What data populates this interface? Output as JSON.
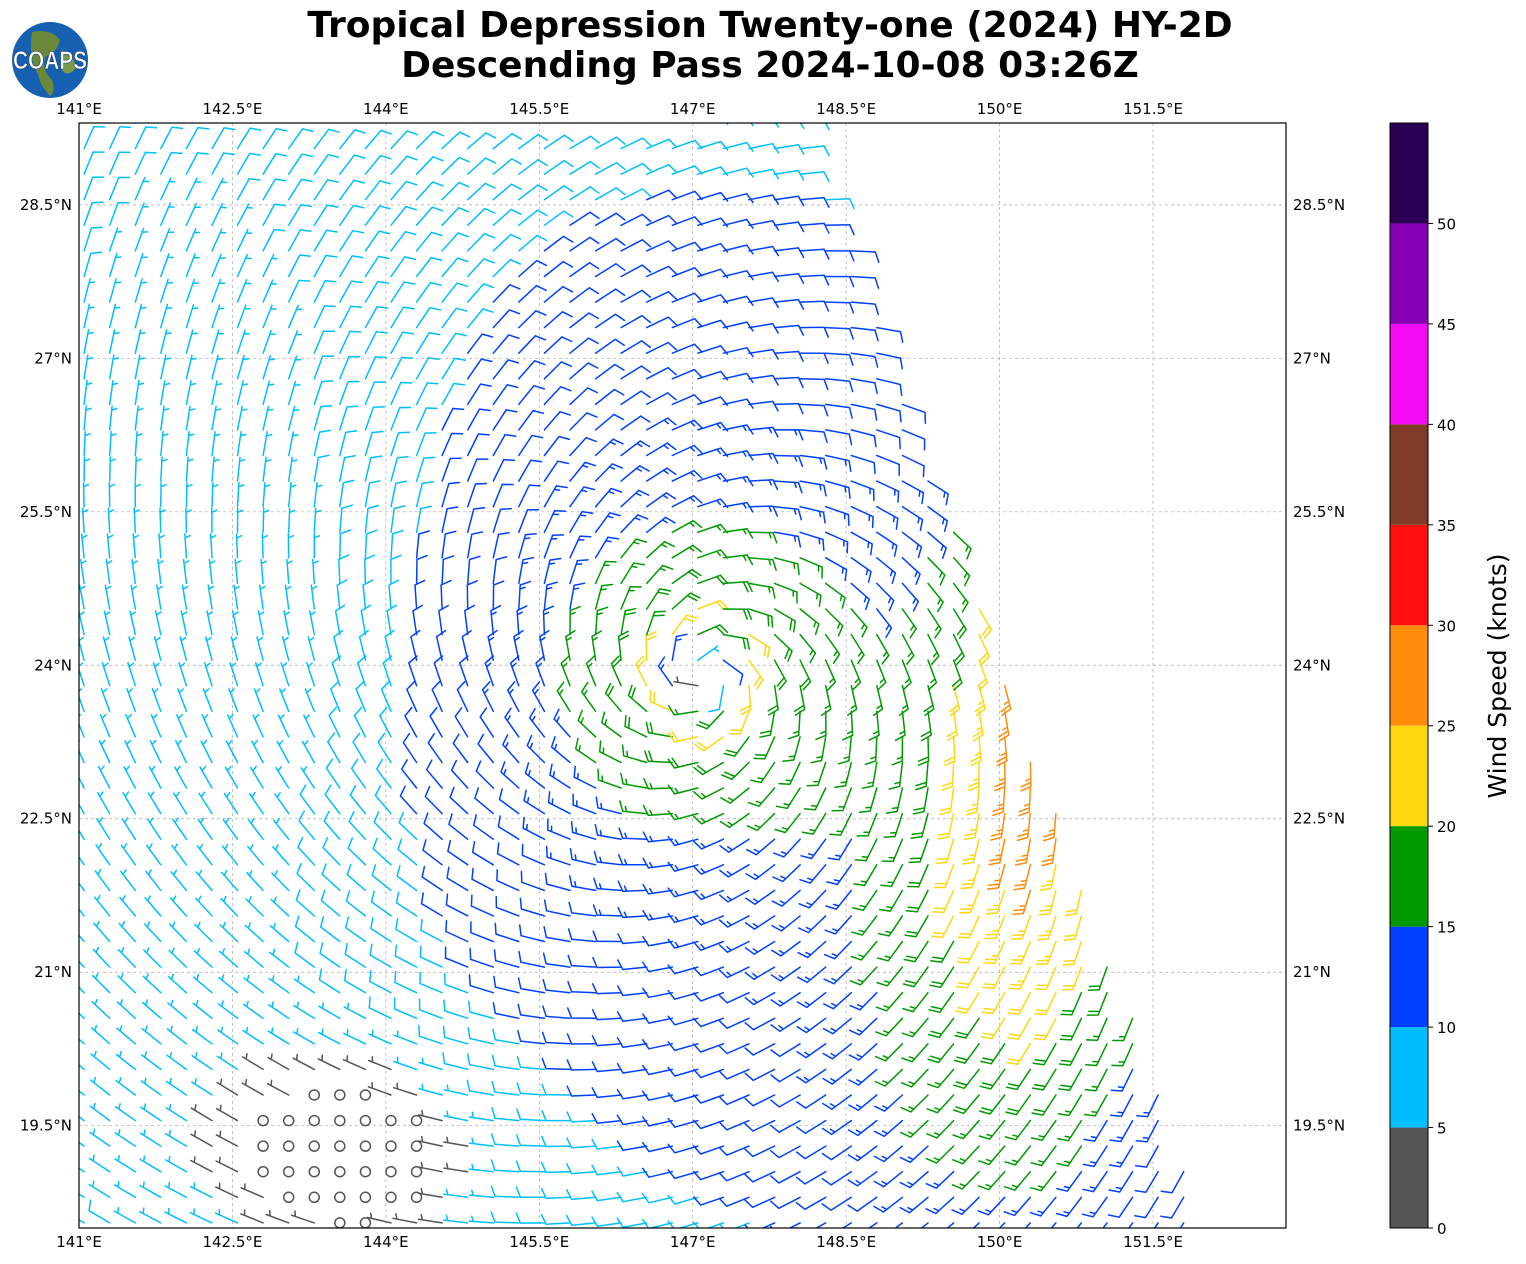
{
  "title": {
    "line1": "Tropical Depression Twenty-one (2024) HY-2D",
    "line2": "Descending Pass 2024-10-08 03:26Z"
  },
  "logo": {
    "text": "COAPS"
  },
  "chart_data": {
    "type": "wind-barb-map",
    "lon_ticks": [
      "141°E",
      "142.5°E",
      "144°E",
      "145.5°E",
      "147°E",
      "148.5°E",
      "150°E",
      "151.5°E"
    ],
    "lon_tick_values": [
      141,
      142.5,
      144,
      145.5,
      147,
      148.5,
      150,
      151.5
    ],
    "lat_ticks": [
      "28.5°N",
      "27°N",
      "25.5°N",
      "24°N",
      "22.5°N",
      "21°N",
      "19.5°N"
    ],
    "lat_tick_values": [
      28.5,
      27,
      25.5,
      24,
      22.5,
      21,
      19.5
    ],
    "lon_range": [
      141,
      152.8
    ],
    "lat_range": [
      18.5,
      29.3
    ],
    "grid": true,
    "circulation_center": {
      "lon": 147.1,
      "lat": 23.9
    },
    "colorbar": {
      "label": "Wind Speed (knots)",
      "ticks": [
        "0",
        "5",
        "10",
        "15",
        "20",
        "25",
        "30",
        "35",
        "40",
        "45",
        "50"
      ],
      "range": [
        0,
        55
      ],
      "bin_colors": [
        "#555555",
        "#00bfff",
        "#0040ff",
        "#009900",
        "#ffd70f",
        "#ff8c0a",
        "#ff0f0f",
        "#803c28",
        "#f50af5",
        "#8800b4",
        "#2a0055"
      ]
    }
  }
}
